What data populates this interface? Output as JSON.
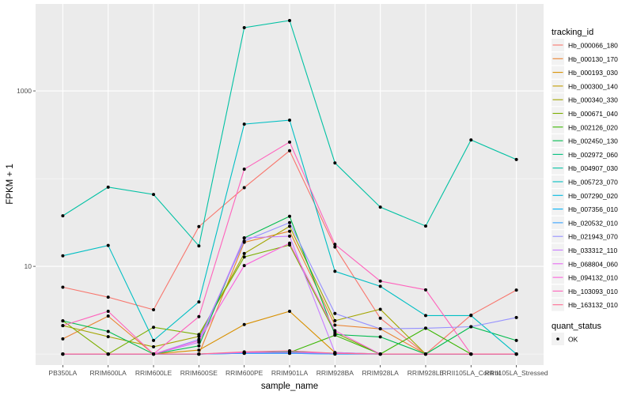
{
  "chart_data": {
    "type": "line",
    "xlabel": "sample_name",
    "ylabel": "FPKM + 1",
    "yscale": "log10",
    "ylim": [
      0.75,
      9800
    ],
    "yticks": [
      10,
      1000
    ],
    "yticklabels": [
      "10",
      "1000"
    ],
    "grid": true,
    "legend_placement": "right",
    "categories": [
      "PB350LA",
      "RRIM600LA",
      "RRIM600LE",
      "RRIM600SE",
      "RRIM600PE",
      "RRIM901LA",
      "RRIM928BA",
      "RRIM928LA",
      "RRIM928LE",
      "RRII105LA_Control",
      "RRII105LA_Stressed"
    ],
    "legend_title": "tracking_id",
    "series": [
      {
        "name": "Hb_000066_180",
        "color": "#F8766D",
        "values": [
          5.79,
          4.45,
          3.2,
          28.4,
          79,
          208,
          16.6,
          2.56,
          1,
          2.78,
          5.37
        ]
      },
      {
        "name": "Hb_000130_170",
        "color": "#EA8331",
        "values": [
          1.49,
          2.71,
          1,
          1,
          18.8,
          25.1,
          2.14,
          1.94,
          1,
          1,
          1
        ]
      },
      {
        "name": "Hb_000193_030",
        "color": "#D89000",
        "values": [
          1,
          1,
          1,
          1.11,
          2.17,
          3.07,
          1.04,
          1,
          1,
          1,
          1
        ]
      },
      {
        "name": "Hb_000300_140",
        "color": "#C09B00",
        "values": [
          1,
          1,
          1,
          1,
          1.04,
          1.06,
          1.02,
          1,
          1,
          1,
          1
        ]
      },
      {
        "name": "Hb_000340_330",
        "color": "#A3A500",
        "values": [
          2.11,
          1.58,
          1.21,
          1.59,
          14.0,
          28.6,
          2.4,
          3.24,
          1,
          1,
          1
        ]
      },
      {
        "name": "Hb_000671_040",
        "color": "#7CAE00",
        "values": [
          2.39,
          1,
          2.02,
          1.67,
          12.8,
          17.5,
          1.75,
          1,
          1,
          1,
          1
        ]
      },
      {
        "name": "Hb_002126_020",
        "color": "#39B600",
        "values": [
          1,
          1,
          1,
          1,
          1.04,
          1.04,
          1.64,
          1,
          1.97,
          1,
          1
        ]
      },
      {
        "name": "Hb_002450_130",
        "color": "#00BB4E",
        "values": [
          2.39,
          1.81,
          1,
          1.24,
          21.1,
          37.2,
          1.67,
          1.57,
          1,
          2.05,
          1.43
        ]
      },
      {
        "name": "Hb_002972_060",
        "color": "#00BF7D",
        "values": [
          1,
          1,
          1,
          1,
          1.04,
          1.06,
          1.02,
          1,
          1,
          1,
          1
        ]
      },
      {
        "name": "Hb_004907_030",
        "color": "#00C1A3",
        "values": [
          37.7,
          80,
          66,
          17.1,
          5260,
          6340,
          151,
          47.4,
          28.8,
          276,
          165
        ]
      },
      {
        "name": "Hb_005723_070",
        "color": "#00BFC4",
        "values": [
          13.2,
          17.3,
          1.43,
          3.93,
          418,
          464,
          8.77,
          5.92,
          2.75,
          2.75,
          1
        ]
      },
      {
        "name": "Hb_007290_020",
        "color": "#00BAE0",
        "values": [
          1,
          1,
          1,
          1,
          1.02,
          1.02,
          1.02,
          1,
          1,
          1,
          1
        ]
      },
      {
        "name": "Hb_007356_010",
        "color": "#00B0F6",
        "values": [
          1,
          1,
          1,
          1,
          1.02,
          1.02,
          1,
          1,
          1,
          1,
          1
        ]
      },
      {
        "name": "Hb_020532_010",
        "color": "#35A2FF",
        "values": [
          1,
          1,
          1,
          1,
          1.02,
          1.02,
          1,
          1,
          1,
          1,
          1
        ]
      },
      {
        "name": "Hb_021943_070",
        "color": "#9590FF",
        "values": [
          1,
          1,
          1,
          1.47,
          19.4,
          31.5,
          2.9,
          1.94,
          1.97,
          2.05,
          2.61
        ]
      },
      {
        "name": "Hb_033312_110",
        "color": "#C77CFF",
        "values": [
          1,
          1,
          1,
          1.36,
          21.1,
          22.1,
          1.04,
          1,
          1,
          1,
          1
        ]
      },
      {
        "name": "Hb_068804_060",
        "color": "#E76BF3",
        "values": [
          1,
          1,
          1,
          1,
          1.04,
          1.04,
          1.02,
          1,
          1,
          1,
          1
        ]
      },
      {
        "name": "Hb_094132_010",
        "color": "#FA62DB",
        "values": [
          1,
          1,
          1,
          1.42,
          10.2,
          18.4,
          1.85,
          1,
          1,
          1,
          1
        ]
      },
      {
        "name": "Hb_103093_010",
        "color": "#FF62BC",
        "values": [
          2.11,
          3.07,
          1,
          2.67,
          128,
          261,
          17.8,
          6.79,
          5.4,
          1,
          1
        ]
      },
      {
        "name": "Hb_163132_010",
        "color": "#FF6C91",
        "values": [
          1,
          1,
          1,
          1,
          1.06,
          1.09,
          1.02,
          1,
          1,
          1,
          1
        ]
      }
    ],
    "shape_legend_title": "quant_status",
    "shape_legend_entries": [
      "OK"
    ]
  }
}
